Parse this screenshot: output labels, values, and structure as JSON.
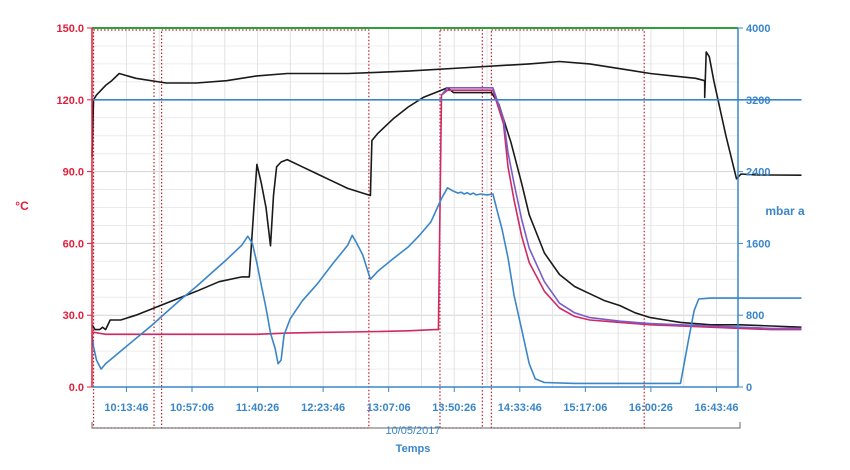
{
  "chart_data": {
    "type": "line",
    "y_left_label": "°C",
    "y_right_label": "mbar a",
    "x_label": "Temps",
    "date_label": "10/05/2017",
    "ylim_left": [
      0,
      150
    ],
    "ylim_right": [
      0,
      4000
    ],
    "y_left_ticks": [
      "0.0",
      "30.0",
      "60.0",
      "90.0",
      "120.0",
      "150.0"
    ],
    "y_right_ticks": [
      "0",
      "800",
      "1600",
      "2400",
      "3200",
      "4000"
    ],
    "x_ticks": [
      "10:13:46",
      "10:57:06",
      "11:40:26",
      "12:23:46",
      "13:07:06",
      "13:50:26",
      "14:33:46",
      "15:17:06",
      "16:00:26",
      "16:43:46"
    ],
    "x_range_minutes": [
      591,
      1018
    ],
    "grid": true,
    "colors": {
      "left_axis": "#e0203c",
      "right_axis": "#3a86c8",
      "top_line": "#2e9e3e",
      "frames": "#c0202a"
    },
    "series": [
      {
        "axis": "left",
        "color": "#1a1a1a",
        "points": [
          [
            591,
            96
          ],
          [
            592,
            120
          ],
          [
            594,
            122
          ],
          [
            597,
            124
          ],
          [
            600,
            126
          ],
          [
            604,
            128
          ],
          [
            609,
            131
          ],
          [
            620,
            129
          ],
          [
            640,
            127
          ],
          [
            660,
            127
          ],
          [
            680,
            128
          ],
          [
            700,
            130
          ],
          [
            720,
            131
          ],
          [
            760,
            131
          ],
          [
            800,
            132
          ],
          [
            840,
            133.5
          ],
          [
            880,
            135
          ],
          [
            900,
            136
          ],
          [
            920,
            135
          ],
          [
            940,
            133
          ],
          [
            960,
            131
          ],
          [
            975,
            130
          ],
          [
            990,
            129
          ],
          [
            996,
            128
          ],
          [
            996,
            121
          ],
          [
            997,
            140
          ],
          [
            999,
            138
          ],
          [
            1002,
            128
          ],
          [
            1010,
            105
          ],
          [
            1017,
            87
          ],
          [
            1020,
            89
          ],
          [
            1030,
            88.6
          ],
          [
            1040,
            88.6
          ],
          [
            1060,
            88.5
          ]
        ]
      },
      {
        "axis": "left",
        "color": "#1a1a1a",
        "points": [
          [
            591,
            26
          ],
          [
            593,
            24
          ],
          [
            596,
            24
          ],
          [
            598,
            25
          ],
          [
            600,
            24
          ],
          [
            603,
            28
          ],
          [
            606,
            28
          ],
          [
            610,
            28
          ],
          [
            620,
            30
          ],
          [
            640,
            35
          ],
          [
            660,
            40
          ],
          [
            675,
            44
          ],
          [
            690,
            46
          ],
          [
            695,
            46
          ],
          [
            698,
            75
          ],
          [
            700,
            93
          ],
          [
            703,
            85
          ],
          [
            706,
            75
          ],
          [
            709,
            59
          ],
          [
            711,
            80
          ],
          [
            713,
            92
          ],
          [
            716,
            94
          ],
          [
            720,
            95
          ],
          [
            730,
            92
          ],
          [
            740,
            89
          ],
          [
            750,
            86
          ],
          [
            760,
            83
          ],
          [
            770,
            81
          ],
          [
            775,
            80
          ],
          [
            776,
            103
          ],
          [
            780,
            106
          ],
          [
            790,
            112
          ],
          [
            800,
            117
          ],
          [
            810,
            121
          ],
          [
            818,
            123
          ],
          [
            826,
            125
          ],
          [
            830,
            123
          ],
          [
            855,
            123
          ],
          [
            860,
            118
          ],
          [
            863,
            112
          ],
          [
            868,
            102
          ],
          [
            875,
            85
          ],
          [
            880,
            72
          ],
          [
            890,
            56
          ],
          [
            900,
            47
          ],
          [
            910,
            42
          ],
          [
            920,
            39
          ],
          [
            930,
            36
          ],
          [
            940,
            34
          ],
          [
            950,
            31
          ],
          [
            960,
            29
          ],
          [
            970,
            28
          ],
          [
            980,
            27
          ],
          [
            1000,
            26
          ],
          [
            1020,
            26
          ],
          [
            1040,
            25.5
          ],
          [
            1060,
            25
          ]
        ]
      },
      {
        "axis": "left",
        "color": "#d02a66",
        "points": [
          [
            591,
            23
          ],
          [
            600,
            22
          ],
          [
            620,
            22
          ],
          [
            640,
            22
          ],
          [
            660,
            22
          ],
          [
            680,
            22
          ],
          [
            700,
            22
          ],
          [
            720,
            22.5
          ],
          [
            740,
            22.8
          ],
          [
            760,
            23
          ],
          [
            780,
            23.2
          ],
          [
            800,
            23.5
          ],
          [
            818,
            24
          ],
          [
            820,
            24
          ],
          [
            822,
            122
          ],
          [
            826,
            124
          ],
          [
            856,
            124
          ],
          [
            863,
            110
          ],
          [
            866,
            92
          ],
          [
            870,
            78
          ],
          [
            875,
            63
          ],
          [
            880,
            52
          ],
          [
            890,
            40
          ],
          [
            900,
            33
          ],
          [
            910,
            29.5
          ],
          [
            920,
            28
          ],
          [
            940,
            27
          ],
          [
            960,
            26
          ],
          [
            980,
            25.5
          ],
          [
            1000,
            25
          ],
          [
            1020,
            24.5
          ],
          [
            1040,
            24
          ],
          [
            1060,
            24
          ]
        ]
      },
      {
        "axis": "left",
        "color": "#7a5cc8",
        "points": [
          [
            822,
            122
          ],
          [
            826,
            125
          ],
          [
            856,
            125
          ],
          [
            863,
            112
          ],
          [
            866,
            98
          ],
          [
            870,
            85
          ],
          [
            875,
            70
          ],
          [
            880,
            58
          ],
          [
            890,
            44
          ],
          [
            900,
            35
          ],
          [
            910,
            31
          ],
          [
            920,
            29
          ],
          [
            940,
            27.5
          ],
          [
            960,
            26.5
          ],
          [
            980,
            26
          ],
          [
            1000,
            25.5
          ],
          [
            1020,
            25
          ],
          [
            1040,
            24.5
          ],
          [
            1060,
            24.5
          ]
        ]
      },
      {
        "axis": "right",
        "color": "#3a86c8",
        "points": [
          [
            591,
            3200
          ],
          [
            1060,
            3200
          ]
        ]
      },
      {
        "axis": "right",
        "color": "#3a86c8",
        "points": [
          [
            591,
            580
          ],
          [
            592,
            450
          ],
          [
            594,
            300
          ],
          [
            597,
            200
          ],
          [
            600,
            260
          ],
          [
            610,
            400
          ],
          [
            620,
            540
          ],
          [
            630,
            680
          ],
          [
            640,
            830
          ],
          [
            650,
            980
          ],
          [
            660,
            1120
          ],
          [
            670,
            1270
          ],
          [
            680,
            1420
          ],
          [
            690,
            1580
          ],
          [
            694,
            1680
          ],
          [
            697,
            1600
          ],
          [
            700,
            1380
          ],
          [
            703,
            1130
          ],
          [
            706,
            880
          ],
          [
            709,
            600
          ],
          [
            712,
            430
          ],
          [
            714,
            260
          ],
          [
            716,
            300
          ],
          [
            718,
            580
          ],
          [
            722,
            760
          ],
          [
            730,
            960
          ],
          [
            740,
            1150
          ],
          [
            750,
            1370
          ],
          [
            760,
            1580
          ],
          [
            763,
            1690
          ],
          [
            766,
            1600
          ],
          [
            770,
            1470
          ],
          [
            775,
            1200
          ],
          [
            780,
            1290
          ],
          [
            790,
            1430
          ],
          [
            800,
            1560
          ],
          [
            808,
            1700
          ],
          [
            815,
            1840
          ],
          [
            822,
            2100
          ],
          [
            826,
            2220
          ],
          [
            830,
            2180
          ],
          [
            833,
            2160
          ],
          [
            835,
            2170
          ],
          [
            837,
            2150
          ],
          [
            839,
            2165
          ],
          [
            841,
            2145
          ],
          [
            843,
            2160
          ],
          [
            845,
            2140
          ],
          [
            848,
            2150
          ],
          [
            852,
            2140
          ],
          [
            856,
            2150
          ],
          [
            859,
            1950
          ],
          [
            862,
            1760
          ],
          [
            866,
            1440
          ],
          [
            870,
            1020
          ],
          [
            875,
            640
          ],
          [
            880,
            260
          ],
          [
            884,
            90
          ],
          [
            890,
            50
          ],
          [
            910,
            40
          ],
          [
            940,
            40
          ],
          [
            970,
            40
          ],
          [
            980,
            40
          ],
          [
            985,
            500
          ],
          [
            989,
            850
          ],
          [
            992,
            980
          ],
          [
            1000,
            990
          ],
          [
            1030,
            990
          ],
          [
            1060,
            990
          ]
        ]
      }
    ],
    "top_line_value_right": 4000,
    "frames": [
      [
        592,
        632
      ],
      [
        637,
        774
      ],
      [
        821,
        849
      ],
      [
        855,
        956
      ]
    ]
  }
}
